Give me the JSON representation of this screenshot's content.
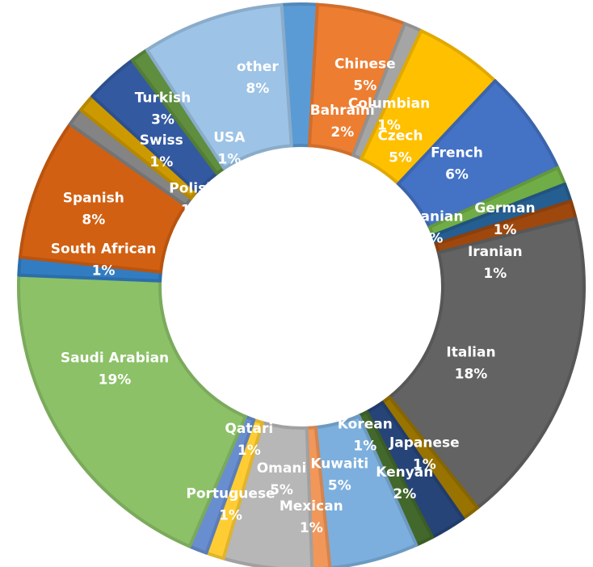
{
  "chart_data": {
    "type": "pie",
    "variant": "doughnut",
    "start_angle_deg": -4,
    "slices": [
      {
        "name": "Bahraini",
        "value": 2,
        "label": "2%",
        "color": "#5B9BD5",
        "text_pos": [
          0.29,
          1.2
        ]
      },
      {
        "name": "Chinese",
        "value": 5,
        "label": "5%",
        "color": "#ED7D31",
        "text_pos": [
          0.45,
          1.53
        ]
      },
      {
        "name": "Columbian",
        "value": 1,
        "label": "1%",
        "color": "#A5A5A5",
        "text_pos": [
          0.62,
          1.25
        ]
      },
      {
        "name": "Czech",
        "value": 5,
        "label": "5%",
        "color": "#FFC000",
        "text_pos": [
          0.7,
          1.02
        ]
      },
      {
        "name": "French",
        "value": 6,
        "label": "6%",
        "color": "#4472C4",
        "text_pos": [
          1.1,
          0.9
        ]
      },
      {
        "name": "German",
        "value": 1,
        "label": "1%",
        "color": "#70AD47",
        "text_pos": [
          1.44,
          0.51
        ]
      },
      {
        "name": "Ghanian",
        "value": 1,
        "label": "1%",
        "color": "#255E91",
        "text_pos": [
          0.92,
          0.45
        ]
      },
      {
        "name": "Iranian",
        "value": 1,
        "label": "1%",
        "color": "#9E480E",
        "text_pos": [
          1.37,
          0.2
        ]
      },
      {
        "name": "Italian",
        "value": 18,
        "label": "18%",
        "color": "#636363",
        "text_pos": [
          1.2,
          -0.51
        ]
      },
      {
        "name": "Japanese",
        "value": 1,
        "label": "1%",
        "color": "#997300",
        "text_pos": [
          0.87,
          -1.15
        ]
      },
      {
        "name": "Kenyan",
        "value": 2,
        "label": "2%",
        "color": "#264478",
        "text_pos": [
          0.73,
          -1.36
        ]
      },
      {
        "name": "Korean",
        "value": 1,
        "label": "1%",
        "color": "#43682B",
        "text_pos": [
          0.45,
          -1.02
        ]
      },
      {
        "name": "Kuwaiti",
        "value": 5,
        "label": "5%",
        "color": "#7CAFDD",
        "text_pos": [
          0.27,
          -1.3
        ]
      },
      {
        "name": "Mexican",
        "value": 1,
        "label": "1%",
        "color": "#F1975A",
        "text_pos": [
          0.07,
          -1.6
        ]
      },
      {
        "name": "Omani",
        "value": 5,
        "label": "5%",
        "color": "#B7B7B7",
        "text_pos": [
          -0.14,
          -1.33
        ]
      },
      {
        "name": "Portuguese",
        "value": 1,
        "label": "1%",
        "color": "#FFCD33",
        "text_pos": [
          -0.5,
          -1.51
        ]
      },
      {
        "name": "Qatari",
        "value": 1,
        "label": "1%",
        "color": "#698ED0",
        "text_pos": [
          -0.37,
          -1.05
        ]
      },
      {
        "name": "Saudi Arabian",
        "value": 19,
        "label": "19%",
        "color": "#8CC168",
        "text_pos": [
          -1.32,
          -0.55
        ]
      },
      {
        "name": "South African",
        "value": 1,
        "label": "1%",
        "color": "#327DC2",
        "text_pos": [
          -1.4,
          0.22
        ]
      },
      {
        "name": "Spanish",
        "value": 8,
        "label": "8%",
        "color": "#D26012",
        "text_pos": [
          -1.47,
          0.58
        ]
      },
      {
        "name": "Polish",
        "value": 1,
        "label": "1%",
        "color": "#848484",
        "text_pos": [
          -0.77,
          0.65
        ]
      },
      {
        "name": "Swiss",
        "value": 1,
        "label": "1%",
        "color": "#CC9A00",
        "text_pos": [
          -0.99,
          0.99
        ]
      },
      {
        "name": "Turkish",
        "value": 3,
        "label": "3%",
        "color": "#335AA1",
        "text_pos": [
          -0.98,
          1.29
        ]
      },
      {
        "name": "USA",
        "value": 1,
        "label": "1%",
        "color": "#5E8E3E",
        "text_pos": [
          -0.51,
          1.01
        ]
      },
      {
        "name": "other",
        "value": 8,
        "label": "8%",
        "color": "#9DC3E6",
        "text_pos": [
          -0.31,
          1.51
        ]
      }
    ],
    "legend": "none",
    "data_labels": "category name and percentage"
  }
}
